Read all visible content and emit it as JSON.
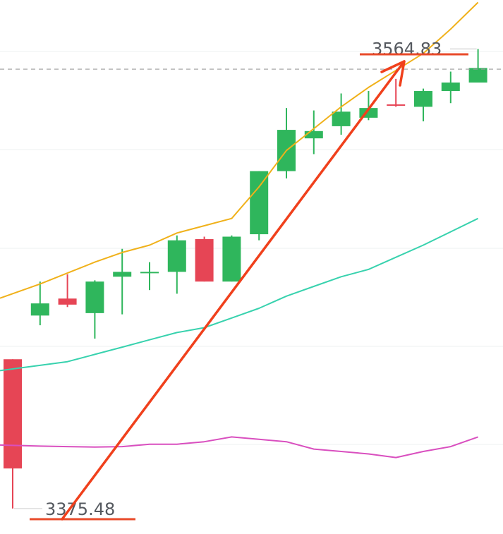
{
  "chart_data": {
    "type": "candlestick",
    "grid": true,
    "ylim": [
      3365,
      3585
    ],
    "colors": {
      "up": "#2fb65c",
      "down": "#e64555",
      "ma_short": "#f0b11a",
      "ma_mid": "#38d2ae",
      "ma_long": "#d94fbf",
      "trend_arrow": "#f0401c",
      "annotation_line": "#e84a2a",
      "grid": "#eef0f2",
      "dashed_price_line": "#9a9a9a"
    },
    "candles": [
      {
        "open": 3437.0,
        "close": 3392.0,
        "high": 3437.0,
        "low": 3375.5
      },
      {
        "open": 3455.0,
        "close": 3460.0,
        "high": 3469.0,
        "low": 3451.0
      },
      {
        "open": 3462.0,
        "close": 3459.5,
        "high": 3472.0,
        "low": 3458.5
      },
      {
        "open": 3456.0,
        "close": 3469.0,
        "high": 3469.5,
        "low": 3445.5
      },
      {
        "open": 3471.0,
        "close": 3473.0,
        "high": 3482.5,
        "low": 3455.5
      },
      {
        "open": 3472.5,
        "close": 3473.0,
        "high": 3477.0,
        "low": 3465.5
      },
      {
        "open": 3473.0,
        "close": 3486.0,
        "high": 3488.0,
        "low": 3464.0
      },
      {
        "open": 3486.5,
        "close": 3469.0,
        "high": 3487.5,
        "low": 3469.0
      },
      {
        "open": 3469.0,
        "close": 3487.5,
        "high": 3488.0,
        "low": 3469.0
      },
      {
        "open": 3488.5,
        "close": 3514.5,
        "high": 3514.5,
        "low": 3486.0
      },
      {
        "open": 3514.5,
        "close": 3531.5,
        "high": 3540.5,
        "low": 3511.5
      },
      {
        "open": 3528.0,
        "close": 3531.0,
        "high": 3539.5,
        "low": 3521.5
      },
      {
        "open": 3533.0,
        "close": 3539.0,
        "high": 3546.5,
        "low": 3529.5
      },
      {
        "open": 3536.5,
        "close": 3540.5,
        "high": 3547.5,
        "low": 3535.5
      },
      {
        "open": 3542.0,
        "close": 3541.5,
        "high": 3552.5,
        "low": 3541.0
      },
      {
        "open": 3541.0,
        "close": 3547.5,
        "high": 3548.5,
        "low": 3535.0
      },
      {
        "open": 3547.5,
        "close": 3551.0,
        "high": 3555.5,
        "low": 3542.5
      },
      {
        "open": 3551.0,
        "close": 3557.0,
        "high": 3564.8,
        "low": 3551.0
      }
    ],
    "series": [
      {
        "values": [
          3464,
          3468,
          3472.5,
          3477,
          3481,
          3484,
          3489,
          3492,
          3495,
          3508,
          3523,
          3532,
          3541,
          3549,
          3556,
          3563,
          3573,
          3584
        ]
      },
      {
        "values": [
          3433,
          3434.5,
          3436,
          3439,
          3442,
          3445,
          3448,
          3450,
          3454,
          3458,
          3463,
          3467,
          3471,
          3474,
          3479,
          3484,
          3489.5,
          3495
        ]
      },
      {
        "values": [
          3401.5,
          3401.2,
          3401,
          3400.8,
          3401,
          3402,
          3402,
          3403,
          3405,
          3404,
          3403,
          3400,
          3399,
          3398,
          3396.5,
          3399,
          3401,
          3405
        ]
      }
    ],
    "annotations": {
      "high_label": "3564.83",
      "low_label": "3375.48",
      "high_value": 3564.83,
      "low_value": 3375.48,
      "current_price_dashed": 3556.5
    }
  }
}
